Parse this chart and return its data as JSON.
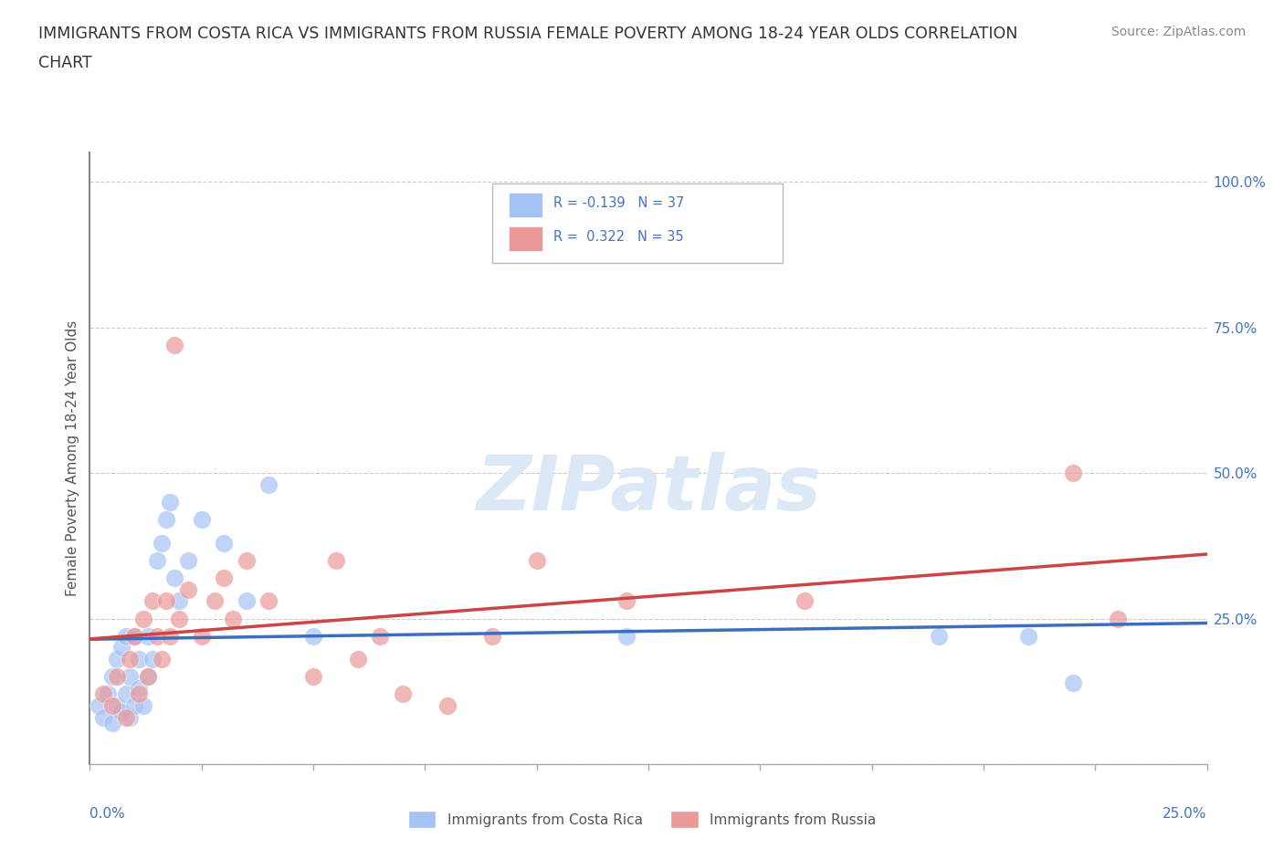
{
  "title_line1": "IMMIGRANTS FROM COSTA RICA VS IMMIGRANTS FROM RUSSIA FEMALE POVERTY AMONG 18-24 YEAR OLDS CORRELATION",
  "title_line2": "CHART",
  "source": "Source: ZipAtlas.com",
  "ylabel": "Female Poverty Among 18-24 Year Olds",
  "yticks": [
    0.0,
    0.25,
    0.5,
    0.75,
    1.0
  ],
  "ytick_labels": [
    "",
    "25.0%",
    "50.0%",
    "75.0%",
    "100.0%"
  ],
  "xlim": [
    0.0,
    0.25
  ],
  "ylim": [
    0.0,
    1.05
  ],
  "costa_rica_color": "#a4c2f4",
  "russia_color": "#ea9999",
  "costa_rica_line_color": "#3c6ebf",
  "russia_line_color": "#cc4444",
  "watermark_color": "#dce8f5",
  "background_color": "#ffffff",
  "costa_rica_x": [
    0.002,
    0.003,
    0.004,
    0.005,
    0.005,
    0.006,
    0.006,
    0.007,
    0.007,
    0.008,
    0.008,
    0.009,
    0.009,
    0.01,
    0.01,
    0.011,
    0.011,
    0.012,
    0.013,
    0.013,
    0.014,
    0.015,
    0.016,
    0.017,
    0.018,
    0.019,
    0.02,
    0.022,
    0.025,
    0.03,
    0.035,
    0.04,
    0.05,
    0.12,
    0.19,
    0.21,
    0.22
  ],
  "costa_rica_y": [
    0.1,
    0.08,
    0.12,
    0.07,
    0.15,
    0.1,
    0.18,
    0.09,
    0.2,
    0.12,
    0.22,
    0.08,
    0.15,
    0.1,
    0.22,
    0.13,
    0.18,
    0.1,
    0.15,
    0.22,
    0.18,
    0.35,
    0.38,
    0.42,
    0.45,
    0.32,
    0.28,
    0.35,
    0.42,
    0.38,
    0.28,
    0.48,
    0.22,
    0.22,
    0.22,
    0.22,
    0.14
  ],
  "russia_x": [
    0.003,
    0.005,
    0.006,
    0.008,
    0.009,
    0.01,
    0.011,
    0.012,
    0.013,
    0.014,
    0.015,
    0.016,
    0.017,
    0.018,
    0.019,
    0.02,
    0.022,
    0.025,
    0.028,
    0.03,
    0.032,
    0.035,
    0.04,
    0.05,
    0.055,
    0.06,
    0.065,
    0.07,
    0.08,
    0.09,
    0.1,
    0.12,
    0.16,
    0.22,
    0.23
  ],
  "russia_y": [
    0.12,
    0.1,
    0.15,
    0.08,
    0.18,
    0.22,
    0.12,
    0.25,
    0.15,
    0.28,
    0.22,
    0.18,
    0.28,
    0.22,
    0.72,
    0.25,
    0.3,
    0.22,
    0.28,
    0.32,
    0.25,
    0.35,
    0.28,
    0.15,
    0.35,
    0.18,
    0.22,
    0.12,
    0.1,
    0.22,
    0.35,
    0.28,
    0.28,
    0.5,
    0.25
  ]
}
